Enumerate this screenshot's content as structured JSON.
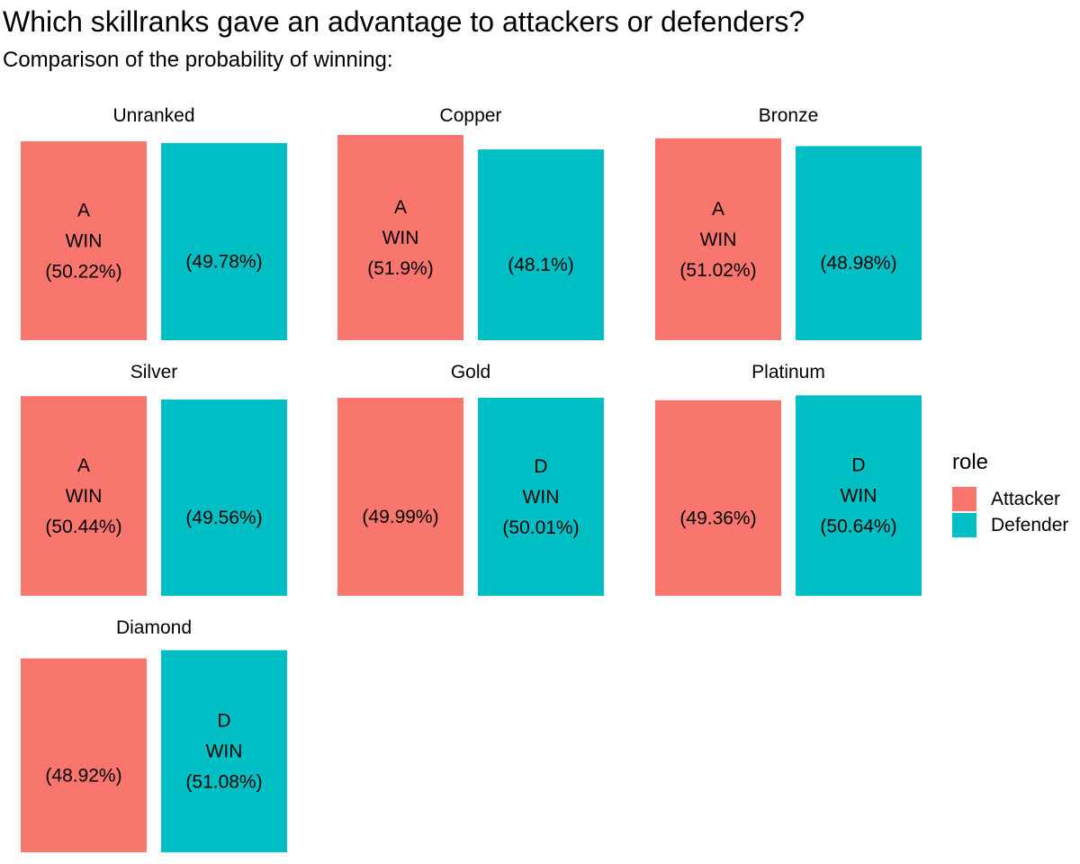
{
  "title": "Which skillranks gave an advantage to attackers or defenders?",
  "subtitle": "Comparison of the probability of winning:",
  "legend": {
    "title": "role",
    "items": [
      {
        "label": "Attacker",
        "color": "#F8766D"
      },
      {
        "label": "Defender",
        "color": "#00BFC4"
      }
    ]
  },
  "chart_data": {
    "type": "bar",
    "facet_by": "skillrank",
    "series": [
      {
        "name": "Attacker",
        "color": "#F8766D"
      },
      {
        "name": "Defender",
        "color": "#00BFC4"
      }
    ],
    "facets": [
      {
        "name": "Unranked",
        "values": [
          50.22,
          49.78
        ],
        "labels": [
          "(50.22%)",
          "(49.78%)"
        ],
        "winner_lines": [
          "A",
          "WIN"
        ],
        "winner_index": 0
      },
      {
        "name": "Copper",
        "values": [
          51.9,
          48.1
        ],
        "labels": [
          "(51.9%)",
          "(48.1%)"
        ],
        "winner_lines": [
          "A",
          "WIN"
        ],
        "winner_index": 0
      },
      {
        "name": "Bronze",
        "values": [
          51.02,
          48.98
        ],
        "labels": [
          "(51.02%)",
          "(48.98%)"
        ],
        "winner_lines": [
          "A",
          "WIN"
        ],
        "winner_index": 0
      },
      {
        "name": "Silver",
        "values": [
          50.44,
          49.56
        ],
        "labels": [
          "(50.44%)",
          "(49.56%)"
        ],
        "winner_lines": [
          "A",
          "WIN"
        ],
        "winner_index": 0
      },
      {
        "name": "Gold",
        "values": [
          49.99,
          50.01
        ],
        "labels": [
          "(49.99%)",
          "(50.01%)"
        ],
        "winner_lines": [
          "D",
          "WIN"
        ],
        "winner_index": 1
      },
      {
        "name": "Platinum",
        "values": [
          49.36,
          50.64
        ],
        "labels": [
          "(49.36%)",
          "(50.64%)"
        ],
        "winner_lines": [
          "D",
          "WIN"
        ],
        "winner_index": 1
      },
      {
        "name": "Diamond",
        "values": [
          48.92,
          51.08
        ],
        "labels": [
          "(48.92%)",
          "(51.08%)"
        ],
        "winner_lines": [
          "D",
          "WIN"
        ],
        "winner_index": 1
      }
    ],
    "grid": false,
    "axes": false,
    "legend_position": "right"
  }
}
